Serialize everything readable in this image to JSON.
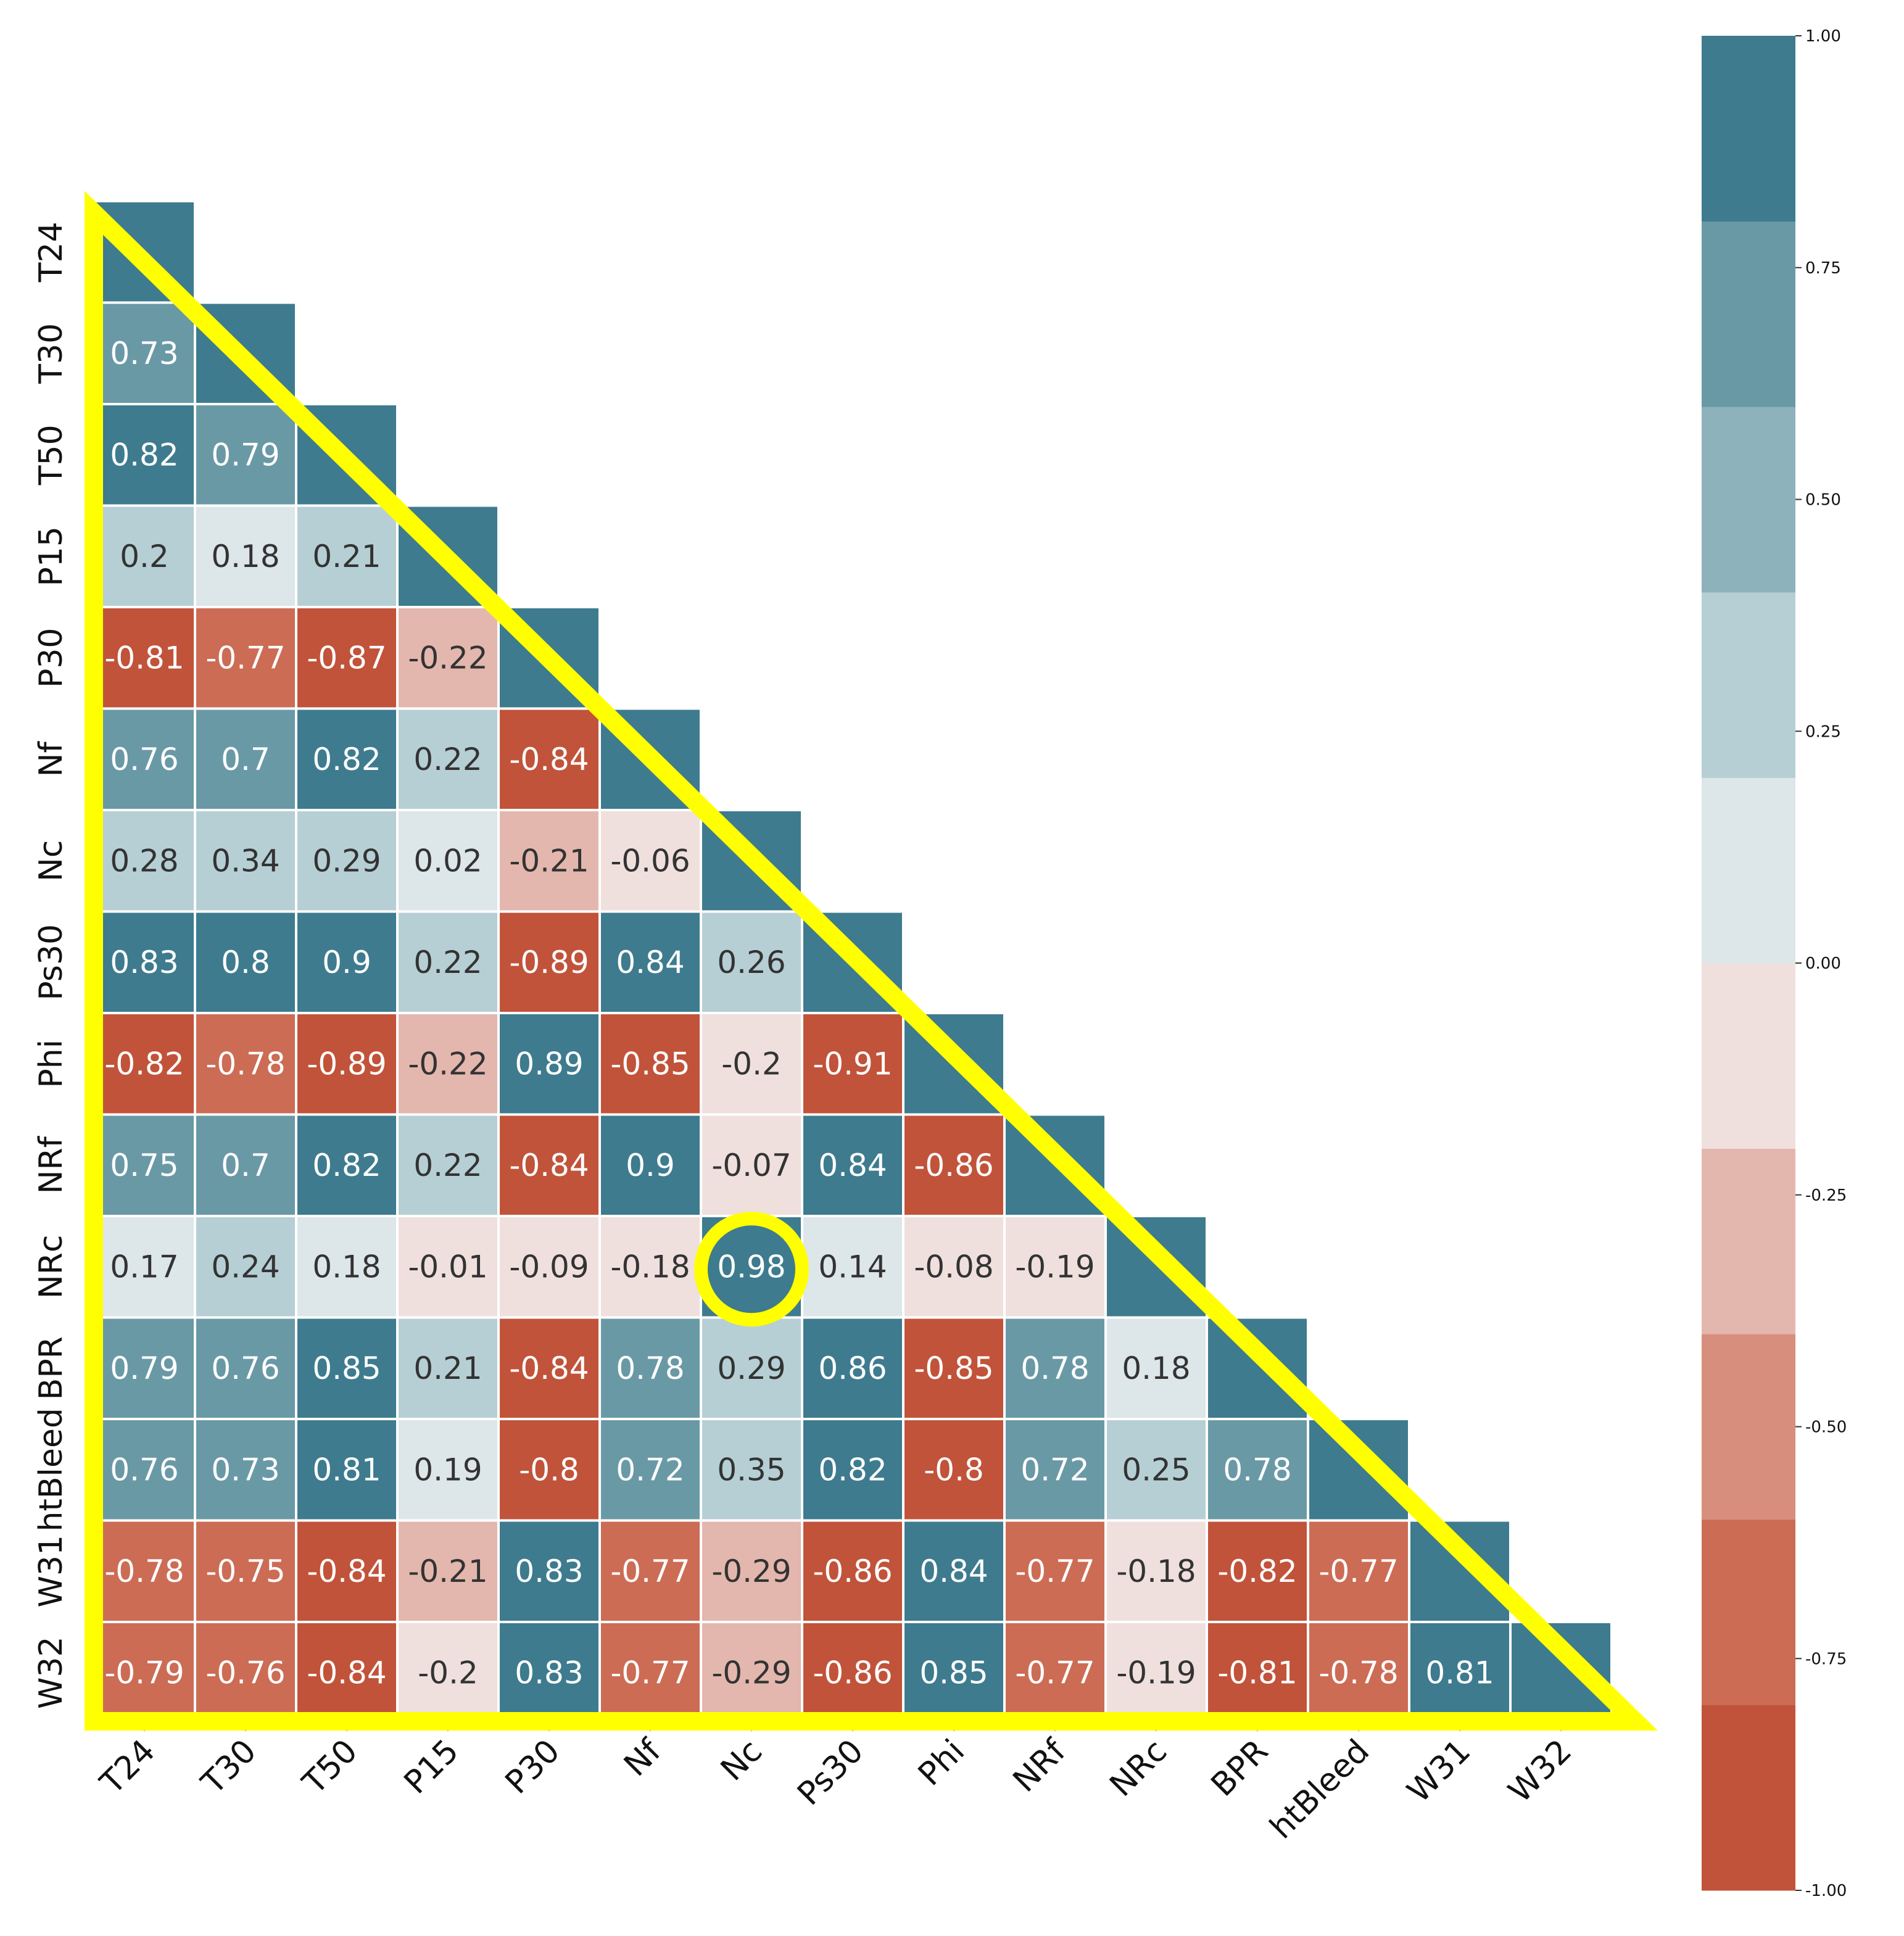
{
  "chart_data": {
    "type": "heatmap",
    "title": "",
    "labels": [
      "T24",
      "T30",
      "T50",
      "P15",
      "P30",
      "Nf",
      "Nc",
      "Ps30",
      "Phi",
      "NRf",
      "NRc",
      "BPR",
      "htBleed",
      "W31",
      "W32"
    ],
    "lower_triangle_values": [
      [],
      [
        0.73
      ],
      [
        0.82,
        0.79
      ],
      [
        0.2,
        0.18,
        0.21
      ],
      [
        -0.81,
        -0.77,
        -0.87,
        -0.22
      ],
      [
        0.76,
        0.7,
        0.82,
        0.22,
        -0.84
      ],
      [
        0.28,
        0.34,
        0.29,
        0.02,
        -0.21,
        -0.06
      ],
      [
        0.83,
        0.8,
        0.9,
        0.22,
        -0.89,
        0.84,
        0.26
      ],
      [
        -0.82,
        -0.78,
        -0.89,
        -0.22,
        0.89,
        -0.85,
        -0.2,
        -0.91
      ],
      [
        0.75,
        0.7,
        0.82,
        0.22,
        -0.84,
        0.9,
        -0.07,
        0.84,
        -0.86
      ],
      [
        0.17,
        0.24,
        0.18,
        -0.01,
        -0.09,
        -0.18,
        0.98,
        0.14,
        -0.08,
        -0.19
      ],
      [
        0.79,
        0.76,
        0.85,
        0.21,
        -0.84,
        0.78,
        0.29,
        0.86,
        -0.85,
        0.78,
        0.18
      ],
      [
        0.76,
        0.73,
        0.81,
        0.19,
        -0.8,
        0.72,
        0.35,
        0.82,
        -0.8,
        0.72,
        0.25,
        0.78
      ],
      [
        -0.78,
        -0.75,
        -0.84,
        -0.21,
        0.83,
        -0.77,
        -0.29,
        -0.86,
        0.84,
        -0.77,
        -0.18,
        -0.82,
        -0.77
      ],
      [
        -0.79,
        -0.76,
        -0.84,
        -0.2,
        0.83,
        -0.77,
        -0.29,
        -0.86,
        0.85,
        -0.77,
        -0.19,
        -0.81,
        -0.78,
        0.81
      ]
    ],
    "diagonal_value": 1.0,
    "diagonal_annotated": false,
    "colorbar": {
      "range": [
        -1.0,
        1.0
      ],
      "ticks": [
        "-1.00",
        "-0.75",
        "-0.50",
        "-0.25",
        "0.00",
        "0.25",
        "0.50",
        "0.75",
        "1.00"
      ],
      "palette": [
        "#c1533a",
        "#cc6c55",
        "#d88e7d",
        "#e3b7ae",
        "#efe0de",
        "#dde6e9",
        "#b6cfd5",
        "#8eb2bc",
        "#6a99a6",
        "#3e7b8e"
      ]
    },
    "highlight": {
      "triangle_color": "#ffff00",
      "circled_cell": {
        "row": "NRc",
        "col": "Nc",
        "value": 0.98
      }
    }
  }
}
